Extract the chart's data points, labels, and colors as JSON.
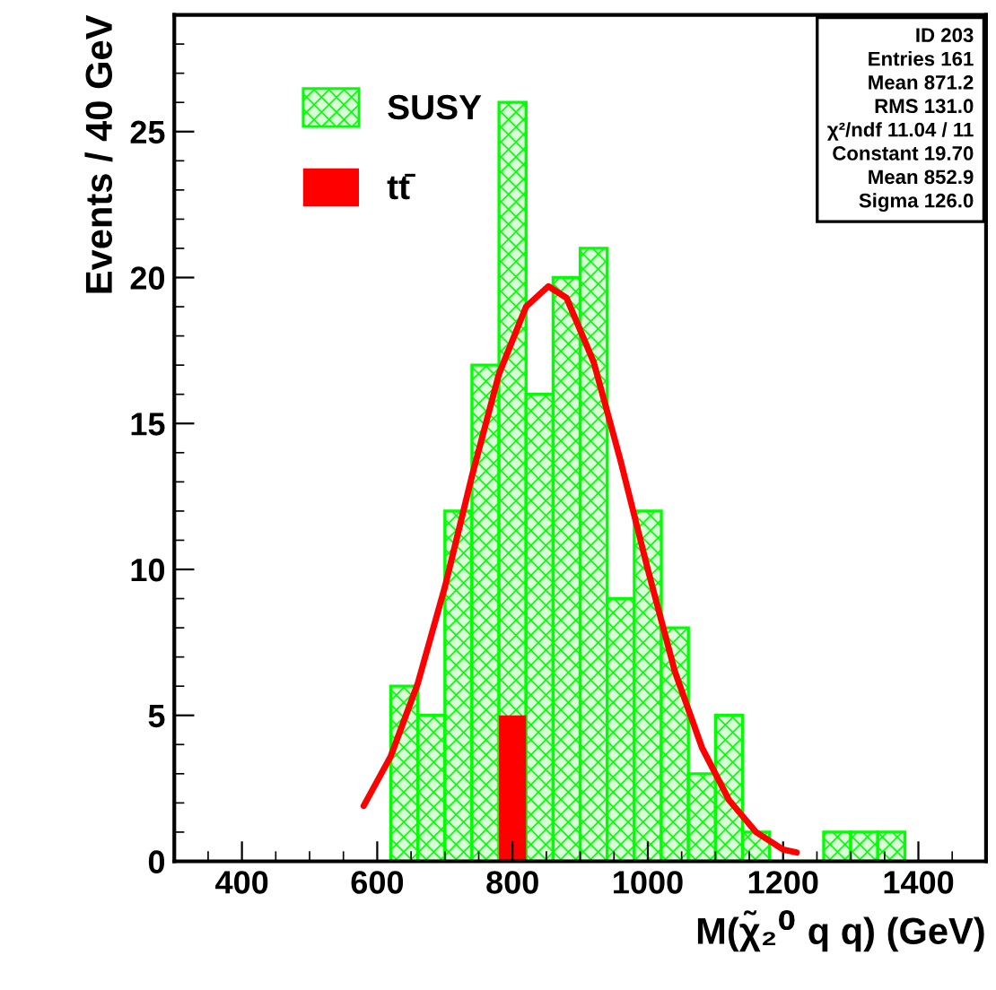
{
  "chart_data": {
    "type": "histogram",
    "xlabel": "M(χ̃₂$^{0}$ q q) (GeV)",
    "ylabel": "Events / 40 GeV",
    "bins": [
      620,
      660,
      700,
      740,
      780,
      820,
      860,
      900,
      940,
      980,
      1020,
      1060,
      1100,
      1140,
      1180,
      1220,
      1260,
      1300,
      1340,
      1380
    ],
    "series": [
      {
        "name": "SUSY",
        "color": "#00ff00",
        "values": [
          6,
          5,
          12,
          17,
          26,
          16,
          20,
          21,
          9,
          12,
          8,
          3,
          5,
          1,
          0,
          0,
          1,
          1,
          1
        ]
      },
      {
        "name": "tt̄",
        "color": "#ff0000",
        "values": [
          null,
          null,
          null,
          null,
          5,
          null,
          null,
          null,
          null,
          null,
          null,
          null,
          null,
          null,
          null,
          null,
          null,
          null,
          null
        ]
      },
      {
        "type": "line",
        "color": "#ff0000",
        "x": [
          580,
          620,
          660,
          700,
          740,
          780,
          820,
          853,
          880,
          920,
          960,
          1000,
          1040,
          1080,
          1120,
          1160,
          1200,
          1220
        ],
        "values": [
          1.9,
          3.6,
          6.1,
          9.4,
          13.2,
          16.7,
          19.0,
          19.7,
          19.3,
          17.1,
          13.7,
          10.0,
          6.5,
          3.9,
          2.1,
          1.0,
          0.4,
          0.3
        ]
      }
    ],
    "xlim": [
      300,
      1500
    ],
    "xticks": [
      400,
      600,
      800,
      1000,
      1200,
      1400
    ],
    "ylim": [
      0,
      29
    ],
    "yticks": [
      0,
      5,
      10,
      15,
      20,
      25
    ],
    "grid": false,
    "legend": "top left",
    "annotations": [
      "ID 203",
      "Entries 161",
      "Mean 871.2",
      "RMS 131.0",
      "χ²/ndf 11.04 / 11",
      "Constant 19.70",
      "Mean 852.9",
      "Sigma 126.0"
    ]
  }
}
